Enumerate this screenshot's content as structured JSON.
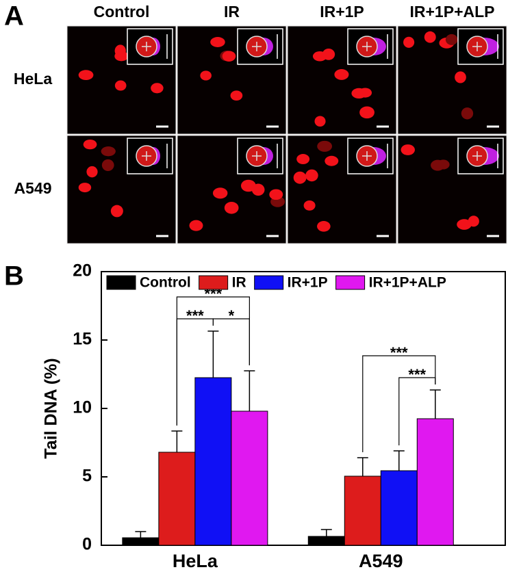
{
  "panels": {
    "a": "A",
    "b": "B"
  },
  "micrographs": {
    "columns": [
      "Control",
      "IR",
      "IR+1P",
      "IR+1P+ALP"
    ],
    "rows": [
      "HeLa",
      "A549"
    ]
  },
  "chart_data": {
    "type": "bar",
    "ylabel": "Tail DNA (%)",
    "categories": [
      "HeLa",
      "A549"
    ],
    "series": [
      {
        "name": "Control",
        "color": "#000000",
        "values": [
          0.55,
          0.65
        ],
        "errors": [
          0.45,
          0.5
        ]
      },
      {
        "name": "IR",
        "color": "#dd1c1c",
        "values": [
          6.8,
          5.05
        ],
        "errors": [
          1.55,
          1.35
        ]
      },
      {
        "name": "IR+1P",
        "color": "#1010f5",
        "values": [
          12.25,
          5.45
        ],
        "errors": [
          3.4,
          1.45
        ]
      },
      {
        "name": "IR+1P+ALP",
        "color": "#e018f0",
        "values": [
          9.8,
          9.25
        ],
        "errors": [
          2.95,
          2.1
        ]
      }
    ],
    "ylim": [
      0,
      20
    ],
    "yticks": [
      0,
      5,
      10,
      15,
      20
    ],
    "significance": [
      {
        "category": 0,
        "from": 1,
        "to": 2,
        "label": "***"
      },
      {
        "category": 0,
        "from": 2,
        "to": 3,
        "label": "*"
      },
      {
        "category": 0,
        "from": 1,
        "to": 3,
        "label": "***"
      },
      {
        "category": 1,
        "from": 2,
        "to": 3,
        "label": "***"
      },
      {
        "category": 1,
        "from": 1,
        "to": 3,
        "label": "***"
      }
    ],
    "legend": "top"
  }
}
